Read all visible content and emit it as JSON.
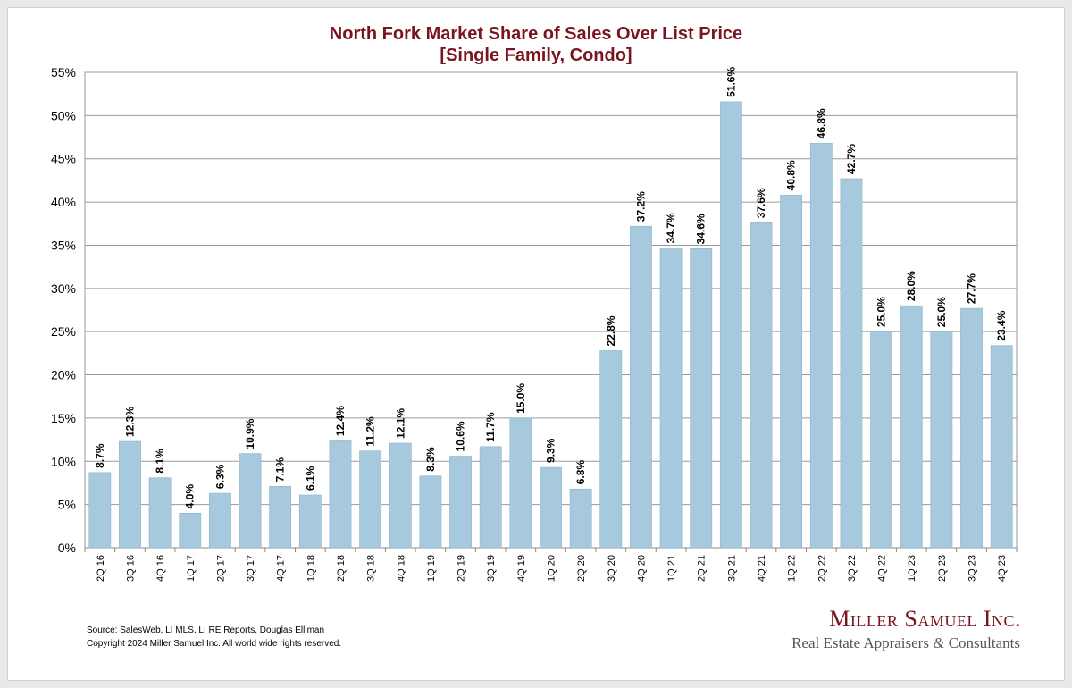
{
  "chart_data": {
    "type": "bar",
    "title": "North Fork Market Share of Sales Over List Price",
    "subtitle": "[Single Family, Condo]",
    "xlabel": "",
    "ylabel": "",
    "ylim": [
      0,
      55
    ],
    "yticks": [
      0,
      5,
      10,
      15,
      20,
      25,
      30,
      35,
      40,
      45,
      50,
      55
    ],
    "ytick_suffix": "%",
    "grid": true,
    "categories": [
      "2Q 16",
      "3Q 16",
      "4Q 16",
      "1Q 17",
      "2Q 17",
      "3Q 17",
      "4Q 17",
      "1Q 18",
      "2Q 18",
      "3Q 18",
      "4Q 18",
      "1Q 19",
      "2Q 19",
      "3Q 19",
      "4Q 19",
      "1Q 20",
      "2Q 20",
      "3Q 20",
      "4Q 20",
      "1Q 21",
      "2Q 21",
      "3Q 21",
      "4Q 21",
      "1Q 22",
      "2Q 22",
      "3Q 22",
      "4Q 22",
      "1Q 23",
      "2Q 23",
      "3Q 23",
      "4Q 23"
    ],
    "values": [
      8.7,
      12.3,
      8.1,
      4.0,
      6.3,
      10.9,
      7.1,
      6.1,
      12.4,
      11.2,
      12.1,
      8.3,
      10.6,
      11.7,
      15.0,
      9.3,
      6.8,
      22.8,
      37.2,
      34.7,
      34.6,
      51.6,
      37.6,
      40.8,
      46.8,
      42.7,
      25.0,
      28.0,
      25.0,
      27.7,
      23.4
    ],
    "data_labels": [
      "8.7%",
      "12.3%",
      "8.1%",
      "4.0%",
      "6.3%",
      "10.9%",
      "7.1%",
      "6.1%",
      "12.4%",
      "11.2%",
      "12.1%",
      "8.3%",
      "10.6%",
      "11.7%",
      "15.0%",
      "9.3%",
      "6.8%",
      "22.8%",
      "37.2%",
      "34.7%",
      "34.6%",
      "51.6%",
      "37.6%",
      "40.8%",
      "46.8%",
      "42.7%",
      "25.0%",
      "28.0%",
      "25.0%",
      "27.7%",
      "23.4%"
    ]
  },
  "colors": {
    "bar": "#a7c9dd",
    "bar_edge": "#8fb5cc",
    "title": "#7a1420",
    "grid": "#9a9a9a",
    "logo": "#7a1420"
  },
  "footer": {
    "source": "Source: SalesWeb, LI MLS, LI RE Reports, Douglas Elliman",
    "copyright": "Copyright 2024 Miller Samuel Inc.  All world wide rights reserved."
  },
  "logo": {
    "name": "Miller Samuel Inc.",
    "tagline_a": "Real Estate Appraisers",
    "tagline_amp": "&",
    "tagline_b": "Consultants"
  }
}
